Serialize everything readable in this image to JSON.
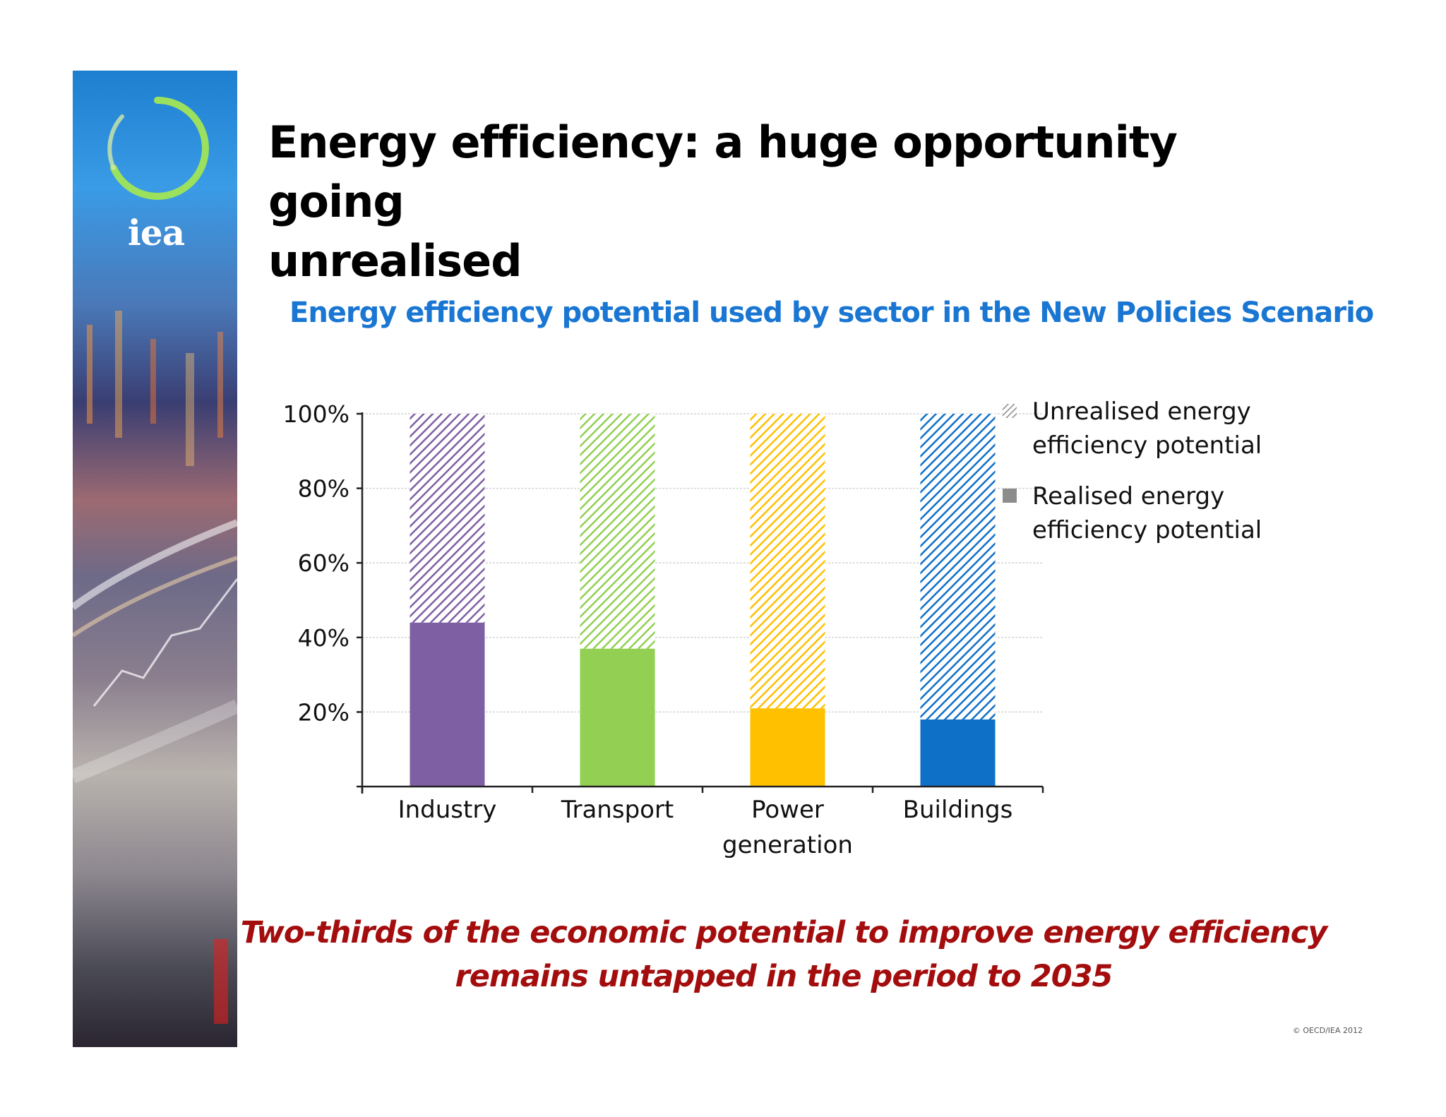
{
  "brand": {
    "logo_text": "iea"
  },
  "slide": {
    "title_line1": "Energy efficiency: a huge opportunity going",
    "title_line2": "unrealised",
    "conclusion_line1": "Two-thirds of the economic potential to improve energy efficiency",
    "conclusion_line2": "remains untapped in the period to 2035",
    "copyright": "© OECD/IEA 2012"
  },
  "colors": {
    "title_blue": "#1976d2",
    "conclusion_red": "#a30d0d",
    "industry": "#7f5fa3",
    "transport": "#92cf52",
    "power": "#ffc000",
    "buildings": "#0f70c8",
    "legend_gray": "#8c8c8c"
  },
  "chart_data": {
    "type": "bar",
    "stacked": true,
    "title": "Energy efficiency potential used by sector in the New Policies Scenario",
    "categories": [
      "Industry",
      "Transport",
      "Power generation",
      "Buildings"
    ],
    "category_lines": [
      [
        "Industry"
      ],
      [
        "Transport"
      ],
      [
        "Power",
        "generation"
      ],
      [
        "Buildings"
      ]
    ],
    "series": [
      {
        "name": "Realised energy efficiency potential",
        "legend_lines": [
          "Realised energy",
          "efficiency potential"
        ],
        "values": [
          44,
          37,
          21,
          18
        ]
      },
      {
        "name": "Unrealised energy efficiency potential",
        "legend_lines": [
          "Unrealised energy",
          "efficiency potential"
        ],
        "values": [
          56,
          63,
          79,
          82
        ]
      }
    ],
    "yticks": [
      "100%",
      "80%",
      "60%",
      "40%",
      "20%"
    ],
    "ytick_values": [
      100,
      80,
      60,
      40,
      20
    ],
    "ylim": [
      0,
      100
    ],
    "xlabel": "",
    "ylabel": "",
    "grid": true,
    "legend_position": "top-right"
  }
}
